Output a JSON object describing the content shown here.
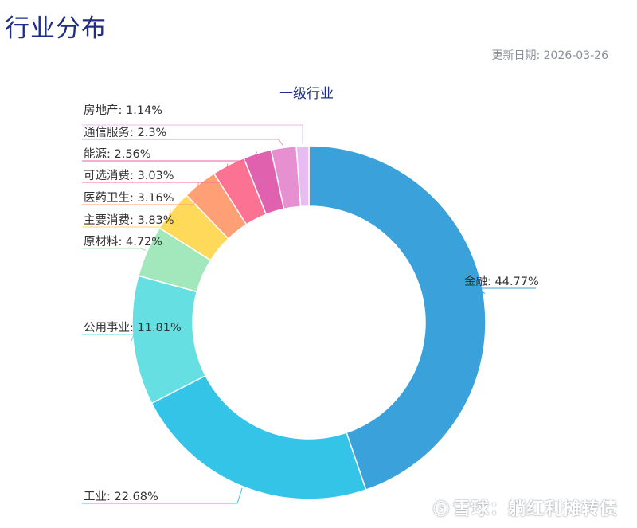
{
  "page": {
    "title": "行业分布",
    "update_label": "更新日期:",
    "update_date": "2026-03-26"
  },
  "chart_data": {
    "type": "pie",
    "variant": "donut",
    "title": "一级行业",
    "slices": [
      {
        "name": "金融",
        "value": 44.77,
        "label": "金融: 44.77%",
        "color": "#3aa1db"
      },
      {
        "name": "工业",
        "value": 22.68,
        "label": "工业: 22.68%",
        "color": "#34c4e8"
      },
      {
        "name": "公用事业",
        "value": 11.81,
        "label": "公用事业: 11.81%",
        "color": "#66dfe3"
      },
      {
        "name": "原材料",
        "value": 4.72,
        "label": "原材料: 4.72%",
        "color": "#a3e8bd"
      },
      {
        "name": "主要消费",
        "value": 3.83,
        "label": "主要消费: 3.83%",
        "color": "#ffd95a"
      },
      {
        "name": "医药卫生",
        "value": 3.16,
        "label": "医药卫生: 3.16%",
        "color": "#fe9f76"
      },
      {
        "name": "可选消费",
        "value": 3.03,
        "label": "可选消费: 3.03%",
        "color": "#fb7293"
      },
      {
        "name": "能源",
        "value": 2.56,
        "label": "能源: 2.56%",
        "color": "#e062ae"
      },
      {
        "name": "通信服务",
        "value": 2.3,
        "label": "通信服务: 2.3%",
        "color": "#e690d1"
      },
      {
        "name": "房地产",
        "value": 1.14,
        "label": "房地产: 1.14%",
        "color": "#e7bcf3"
      }
    ]
  },
  "watermark": {
    "logo": "ⓢ",
    "text": "雪球：躺红利摊转债"
  }
}
